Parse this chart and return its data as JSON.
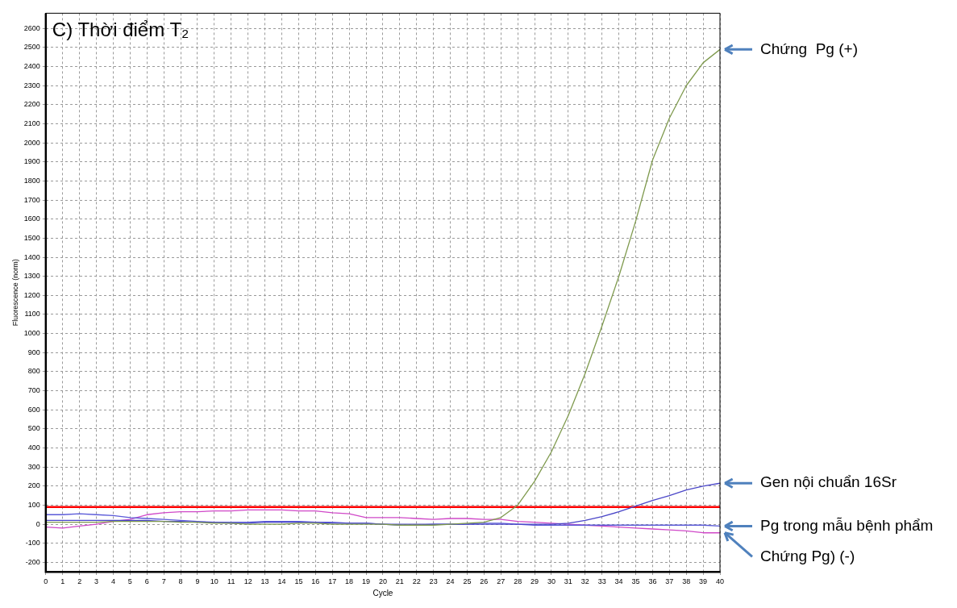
{
  "chart_data": {
    "type": "line",
    "title": "C) Thời điểm T₂",
    "xlabel": "Cycle",
    "ylabel": "Fluorescence (norm)",
    "x": [
      0,
      1,
      2,
      3,
      4,
      5,
      6,
      7,
      8,
      9,
      10,
      11,
      12,
      13,
      14,
      15,
      16,
      17,
      18,
      19,
      20,
      21,
      22,
      23,
      24,
      25,
      26,
      27,
      28,
      29,
      30,
      31,
      32,
      33,
      34,
      35,
      36,
      37,
      38,
      39,
      40
    ],
    "series": [
      {
        "name": "Chứng  Pg (+)",
        "color": "#7f9a4e",
        "values": [
          10,
          10,
          10,
          10,
          15,
          15,
          15,
          15,
          10,
          10,
          5,
          5,
          0,
          0,
          0,
          5,
          5,
          0,
          0,
          0,
          0,
          -5,
          -5,
          -5,
          0,
          5,
          10,
          35,
          100,
          225,
          380,
          570,
          790,
          1040,
          1300,
          1590,
          1910,
          2130,
          2300,
          2420,
          2490
        ]
      },
      {
        "name": "Gen nội chuẩn 16Sr",
        "color": "#4a46c8",
        "values": [
          20,
          20,
          20,
          20,
          20,
          20,
          20,
          15,
          15,
          10,
          10,
          5,
          5,
          10,
          10,
          10,
          10,
          5,
          5,
          5,
          0,
          0,
          0,
          0,
          0,
          0,
          0,
          0,
          0,
          0,
          0,
          5,
          20,
          40,
          65,
          95,
          125,
          150,
          180,
          200,
          215
        ]
      },
      {
        "name": "Pg trong mẫu bệnh phẩm",
        "color": "#5a5ad8",
        "values": [
          50,
          50,
          55,
          50,
          45,
          35,
          30,
          25,
          20,
          15,
          10,
          10,
          10,
          15,
          15,
          15,
          10,
          10,
          5,
          5,
          0,
          -5,
          -5,
          0,
          0,
          0,
          5,
          5,
          0,
          -5,
          -5,
          -5,
          -5,
          -5,
          -5,
          -5,
          -5,
          -5,
          -5,
          -5,
          -10
        ]
      },
      {
        "name": "Chứng Pg) (-)",
        "color": "#d048c8",
        "values": [
          -15,
          -20,
          -10,
          0,
          15,
          25,
          50,
          60,
          65,
          65,
          70,
          70,
          75,
          75,
          75,
          70,
          70,
          60,
          55,
          35,
          35,
          35,
          30,
          25,
          30,
          30,
          25,
          25,
          15,
          10,
          5,
          0,
          -5,
          -10,
          -15,
          -20,
          -25,
          -30,
          -35,
          -45,
          -45
        ]
      }
    ],
    "xlim": [
      0,
      40
    ],
    "xticks": [
      0,
      1,
      2,
      3,
      4,
      5,
      6,
      7,
      8,
      9,
      10,
      11,
      12,
      13,
      14,
      15,
      16,
      17,
      18,
      19,
      20,
      21,
      22,
      23,
      24,
      25,
      26,
      27,
      28,
      29,
      30,
      31,
      32,
      33,
      34,
      35,
      36,
      37,
      38,
      39,
      40
    ],
    "ylim": [
      -250,
      2680
    ],
    "yticks": [
      -200,
      -100,
      0,
      100,
      200,
      300,
      400,
      500,
      600,
      700,
      800,
      900,
      1000,
      1100,
      1200,
      1300,
      1400,
      1500,
      1600,
      1700,
      1800,
      1900,
      2000,
      2100,
      2200,
      2300,
      2400,
      2500,
      2600
    ],
    "ref_lines": [
      {
        "axis": "y",
        "value": 90,
        "color": "#ff0000"
      }
    ],
    "grid": true,
    "legend": false,
    "marker": "none",
    "line_style": "solid"
  }
}
